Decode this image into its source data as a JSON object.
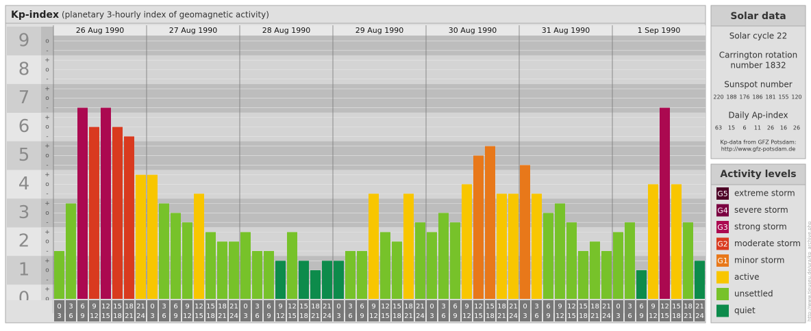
{
  "chart_data": {
    "type": "bar",
    "title": "Kp-index",
    "subtitle": "(planetary 3-hourly index of geomagnetic activity)",
    "days": [
      "26 Aug 1990",
      "27 Aug 1990",
      "28 Aug 1990",
      "29 Aug 1990",
      "30 Aug 1990",
      "31 Aug 1990",
      "1 Sep 1990"
    ],
    "hour_labels": [
      [
        0,
        3
      ],
      [
        3,
        6
      ],
      [
        6,
        9
      ],
      [
        9,
        12
      ],
      [
        12,
        15
      ],
      [
        15,
        18
      ],
      [
        18,
        21
      ],
      [
        21,
        24
      ]
    ],
    "values": [
      [
        1.67,
        3.33,
        6.67,
        6,
        6.67,
        6,
        5.67,
        4.33
      ],
      [
        4.33,
        3.33,
        3,
        2.67,
        3.67,
        2.33,
        2,
        2
      ],
      [
        2.33,
        1.67,
        1.67,
        1.33,
        2.33,
        1.33,
        1,
        1.33
      ],
      [
        1.33,
        1.67,
        1.67,
        3.67,
        2.33,
        2,
        3.67,
        2.67
      ],
      [
        2.33,
        3,
        2.67,
        4,
        5,
        5.33,
        3.67,
        3.67
      ],
      [
        4.67,
        3.67,
        3,
        3.33,
        2.67,
        1.67,
        2,
        1.67
      ],
      [
        2.33,
        2.67,
        1,
        4,
        6.67,
        4,
        2.67,
        1.33
      ]
    ],
    "colors": [
      [
        "#77c22a",
        "#77c22a",
        "#ab0950",
        "#d93a1f",
        "#ab0950",
        "#d93a1f",
        "#d93a1f",
        "#f8c600"
      ],
      [
        "#f8c600",
        "#77c22a",
        "#77c22a",
        "#77c22a",
        "#f8c600",
        "#77c22a",
        "#77c22a",
        "#77c22a"
      ],
      [
        "#77c22a",
        "#77c22a",
        "#77c22a",
        "#0d8b4b",
        "#77c22a",
        "#0d8b4b",
        "#0d8b4b",
        "#0d8b4b"
      ],
      [
        "#0d8b4b",
        "#77c22a",
        "#77c22a",
        "#f8c600",
        "#77c22a",
        "#77c22a",
        "#f8c600",
        "#77c22a"
      ],
      [
        "#77c22a",
        "#77c22a",
        "#77c22a",
        "#f8c600",
        "#e8781a",
        "#e8781a",
        "#f8c600",
        "#f8c600"
      ],
      [
        "#e8781a",
        "#f8c600",
        "#77c22a",
        "#77c22a",
        "#77c22a",
        "#77c22a",
        "#77c22a",
        "#77c22a"
      ],
      [
        "#77c22a",
        "#77c22a",
        "#0d8b4b",
        "#f8c600",
        "#ab0950",
        "#f8c600",
        "#77c22a",
        "#0d8b4b"
      ]
    ],
    "ylim": [
      0,
      9.5
    ],
    "yticks": [
      0,
      1,
      2,
      3,
      4,
      5,
      6,
      7,
      8,
      9
    ],
    "minor_ticks": [
      {
        "value": 9,
        "label": "o"
      },
      {
        "value": 8.67,
        "label": "-"
      },
      {
        "value": 8.33,
        "label": "+"
      },
      {
        "value": 8,
        "label": "o"
      },
      {
        "value": 7.67,
        "label": "-"
      },
      {
        "value": 7.33,
        "label": "+"
      },
      {
        "value": 7,
        "label": "o"
      },
      {
        "value": 6.67,
        "label": "-"
      },
      {
        "value": 6.33,
        "label": "+"
      },
      {
        "value": 6,
        "label": "o"
      },
      {
        "value": 5.67,
        "label": "-"
      },
      {
        "value": 5.33,
        "label": "+"
      },
      {
        "value": 5,
        "label": "o"
      },
      {
        "value": 4.67,
        "label": "-"
      },
      {
        "value": 4.33,
        "label": "+"
      },
      {
        "value": 4,
        "label": "o"
      },
      {
        "value": 3.67,
        "label": "-"
      },
      {
        "value": 3.33,
        "label": "+"
      },
      {
        "value": 3,
        "label": "o"
      },
      {
        "value": 2.67,
        "label": "-"
      },
      {
        "value": 2.33,
        "label": "+"
      },
      {
        "value": 2,
        "label": "o"
      },
      {
        "value": 1.67,
        "label": "-"
      },
      {
        "value": 1.33,
        "label": "+"
      },
      {
        "value": 1,
        "label": "o"
      },
      {
        "value": 0.67,
        "label": "-"
      },
      {
        "value": 0.33,
        "label": "+"
      },
      {
        "value": 0,
        "label": "o"
      }
    ]
  },
  "solar_data": {
    "title": "Solar data",
    "cycle": "Solar cycle 22",
    "carrington": [
      "Carrington rotation",
      "number 1832"
    ],
    "sunspot_title": "Sunspot number",
    "sunspot": [
      220,
      188,
      176,
      186,
      181,
      155,
      120
    ],
    "ap_title": "Daily Ap-index",
    "ap": [
      63,
      15,
      6,
      11,
      26,
      16,
      26
    ],
    "source": [
      "Kp-data from GFZ Potsdam:",
      "http://www.gfz-potsdam.de"
    ]
  },
  "activity_levels": {
    "title": "Activity levels",
    "items": [
      {
        "badge": "G5",
        "label": "extreme storm",
        "color": "#4d0026"
      },
      {
        "badge": "G4",
        "label": "severe storm",
        "color": "#7a0040"
      },
      {
        "badge": "G3",
        "label": "strong storm",
        "color": "#ab0950"
      },
      {
        "badge": "G2",
        "label": "moderate storm",
        "color": "#d93a1f"
      },
      {
        "badge": "G1",
        "label": "minor storm",
        "color": "#e8781a"
      },
      {
        "label": "active",
        "color": "#f8c600"
      },
      {
        "label": "unsettled",
        "color": "#77c22a"
      },
      {
        "label": "quiet",
        "color": "#0d8b4b"
      }
    ]
  },
  "side_url": "http://www.tieuseu.de/ura/kp_archive.php"
}
